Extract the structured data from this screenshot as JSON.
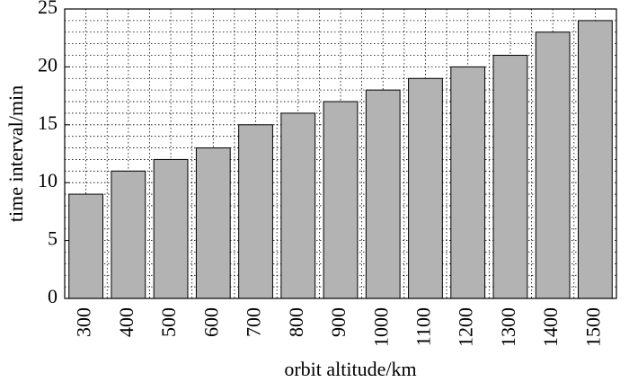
{
  "chart_data": {
    "type": "bar",
    "x_label": "orbit altitude/km",
    "y_label": "time interval/min",
    "categories": [
      "300",
      "400",
      "500",
      "600",
      "700",
      "800",
      "900",
      "1000",
      "1100",
      "1200",
      "1300",
      "1400",
      "1500"
    ],
    "values": [
      9,
      11,
      12,
      13,
      15,
      16,
      17,
      18,
      19,
      20,
      21,
      23,
      24
    ],
    "color": "#b3b3b3",
    "ylim": [
      0,
      25
    ],
    "yticks": [
      0,
      5,
      10,
      15,
      20,
      25
    ],
    "grid": true
  }
}
